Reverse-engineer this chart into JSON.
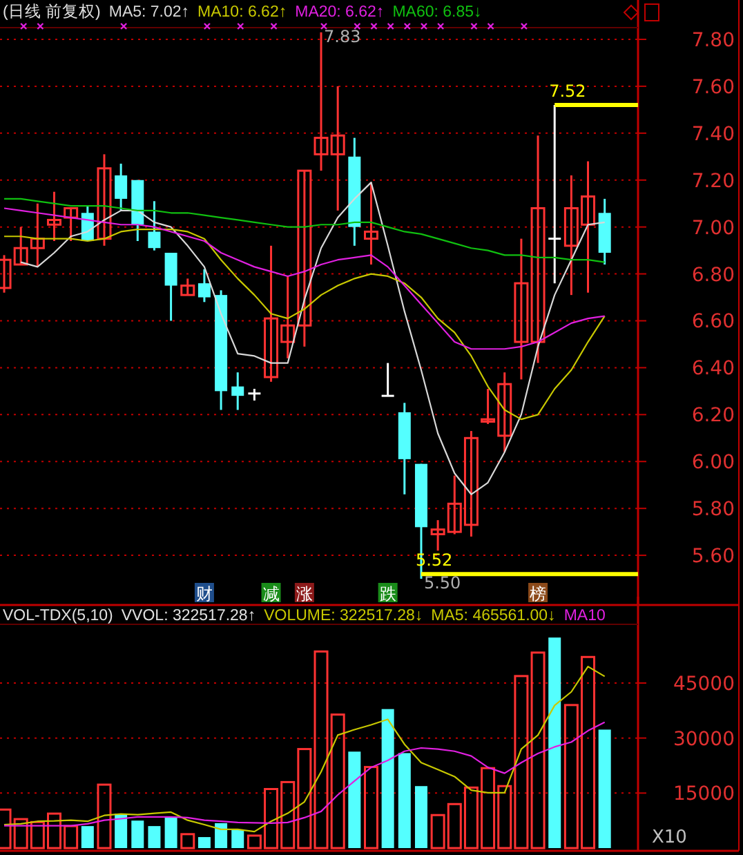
{
  "chart_data": [
    {
      "type": "candlestick",
      "title": "(日线 前复权)",
      "categories": [
        null,
        null,
        null,
        null,
        null,
        null,
        null,
        null,
        null,
        null,
        null,
        null,
        null,
        null,
        null,
        null,
        null,
        null,
        null,
        null,
        null,
        null,
        null,
        null,
        null,
        null,
        null,
        null,
        null,
        null,
        null,
        null,
        null,
        null,
        null,
        null,
        null
      ],
      "ohlc": [
        [
          6.74,
          6.88,
          6.72,
          6.86
        ],
        [
          6.84,
          7.0,
          6.84,
          6.91
        ],
        [
          6.91,
          7.1,
          6.83,
          6.95
        ],
        [
          7.01,
          7.15,
          6.94,
          7.03
        ],
        [
          7.04,
          7.08,
          6.94,
          7.08
        ],
        [
          7.06,
          7.09,
          6.94,
          6.94
        ],
        [
          6.95,
          7.31,
          6.92,
          7.25
        ],
        [
          7.22,
          7.27,
          7.07,
          7.12
        ],
        [
          7.2,
          7.2,
          6.94,
          7.01
        ],
        [
          6.98,
          7.11,
          6.9,
          6.91
        ],
        [
          6.89,
          6.89,
          6.6,
          6.75
        ],
        [
          6.71,
          6.78,
          6.71,
          6.75
        ],
        [
          6.76,
          6.82,
          6.68,
          6.7
        ],
        [
          6.71,
          6.73,
          6.22,
          6.3
        ],
        [
          6.32,
          6.38,
          6.22,
          6.28
        ],
        [
          6.29,
          6.31,
          6.26,
          6.29
        ],
        [
          6.36,
          6.92,
          6.34,
          6.61
        ],
        [
          6.51,
          6.79,
          6.44,
          6.58
        ],
        [
          6.58,
          7.24,
          6.49,
          7.24
        ],
        [
          7.31,
          7.83,
          7.24,
          7.38
        ],
        [
          7.31,
          7.6,
          7.07,
          7.39
        ],
        [
          7.3,
          7.38,
          6.92,
          7.0
        ],
        [
          6.95,
          7.19,
          6.84,
          6.98
        ],
        [
          6.28,
          6.42,
          6.28,
          6.28
        ],
        [
          6.21,
          6.25,
          5.86,
          6.01
        ],
        [
          5.99,
          5.99,
          5.5,
          5.72
        ],
        [
          5.69,
          5.75,
          5.62,
          5.71
        ],
        [
          5.7,
          5.94,
          5.69,
          5.82
        ],
        [
          5.73,
          6.13,
          5.68,
          6.1
        ],
        [
          6.17,
          6.31,
          6.16,
          6.18
        ],
        [
          6.11,
          6.38,
          6.04,
          6.33
        ],
        [
          6.51,
          6.95,
          6.35,
          6.76
        ],
        [
          6.51,
          7.39,
          6.42,
          7.08
        ],
        [
          6.95,
          7.52,
          6.76,
          6.95
        ],
        [
          6.92,
          7.22,
          6.71,
          7.08
        ],
        [
          7.01,
          7.28,
          6.72,
          7.13
        ],
        [
          7.06,
          7.12,
          6.84,
          6.89
        ]
      ],
      "colors": [
        "#ff3232",
        "#ff3232",
        "#ff3232",
        "#ff3232",
        "#ff3232",
        "#54ffff",
        "#ff3232",
        "#54ffff",
        "#54ffff",
        "#54ffff",
        "#54ffff",
        "#ff3232",
        "#54ffff",
        "#54ffff",
        "#54ffff",
        "#ffffff",
        "#ff3232",
        "#ff3232",
        "#ff3232",
        "#ff3232",
        "#ff3232",
        "#54ffff",
        "#ff3232",
        "#ffffff",
        "#54ffff",
        "#54ffff",
        "#ff3232",
        "#ff3232",
        "#ff3232",
        "#ff3232",
        "#ff3232",
        "#ff3232",
        "#ff3232",
        "#ffffff",
        "#ff3232",
        "#ff3232",
        "#54ffff"
      ],
      "series": [
        {
          "type": "line",
          "name": "MA5: 7.02↑",
          "color": "#d8d8d8",
          "values": [
            null,
            6.85,
            6.83,
            6.89,
            6.96,
            6.98,
            7.03,
            7.07,
            7.07,
            7.02,
            7.0,
            6.92,
            6.83,
            6.63,
            6.46,
            6.45,
            6.42,
            6.42,
            6.69,
            6.91,
            7.04,
            7.12,
            7.19,
            6.92,
            6.64,
            6.39,
            6.12,
            5.95,
            5.86,
            5.91,
            6.04,
            6.2,
            6.49,
            6.71,
            6.86,
            7.01,
            7.02
          ]
        },
        {
          "type": "line",
          "name": "MA10: 6.62↑",
          "color": "#c8c800",
          "values": [
            6.96,
            6.96,
            6.95,
            6.95,
            6.95,
            6.94,
            6.95,
            6.98,
            6.99,
            6.99,
            6.99,
            6.98,
            6.95,
            6.86,
            6.78,
            6.71,
            6.63,
            6.61,
            6.65,
            6.71,
            6.75,
            6.78,
            6.8,
            6.79,
            6.76,
            6.7,
            6.61,
            6.55,
            6.45,
            6.32,
            6.22,
            6.18,
            6.2,
            6.31,
            6.39,
            6.51,
            6.62
          ]
        },
        {
          "type": "line",
          "name": "MA20: 6.62↑",
          "color": "#e020e0",
          "values": [
            7.08,
            7.07,
            7.06,
            7.05,
            7.04,
            7.03,
            7.02,
            7.01,
            7.01,
            7.0,
            6.98,
            6.96,
            6.94,
            6.89,
            6.86,
            6.83,
            6.81,
            6.79,
            6.81,
            6.84,
            6.86,
            6.87,
            6.88,
            6.83,
            6.75,
            6.67,
            6.59,
            6.51,
            6.48,
            6.48,
            6.48,
            6.49,
            6.51,
            6.55,
            6.59,
            6.61,
            6.62
          ]
        },
        {
          "type": "line",
          "name": "MA60: 6.85↓",
          "color": "#10c010",
          "values": [
            7.12,
            7.12,
            7.11,
            7.1,
            7.09,
            7.09,
            7.09,
            7.08,
            7.07,
            7.07,
            7.06,
            7.06,
            7.05,
            7.04,
            7.03,
            7.02,
            7.01,
            7.0,
            7.0,
            7.01,
            7.01,
            7.02,
            7.02,
            7.0,
            6.98,
            6.97,
            6.95,
            6.93,
            6.91,
            6.9,
            6.88,
            6.88,
            6.87,
            6.87,
            6.86,
            6.86,
            6.85
          ]
        }
      ],
      "ylim": [
        5.4,
        7.85
      ],
      "yticks": [
        {
          "value": 5.6,
          "label": "5.60"
        },
        {
          "value": 5.8,
          "label": "5.80"
        },
        {
          "value": 6.0,
          "label": "6.00"
        },
        {
          "value": 6.2,
          "label": "6.20"
        },
        {
          "value": 6.4,
          "label": "6.40"
        },
        {
          "value": 6.6,
          "label": "6.60"
        },
        {
          "value": 6.8,
          "label": "6.80"
        },
        {
          "value": 7.0,
          "label": "7.00"
        },
        {
          "value": 7.2,
          "label": "7.20"
        },
        {
          "value": 7.4,
          "label": "7.40"
        },
        {
          "value": 7.6,
          "label": "7.60"
        },
        {
          "value": 7.8,
          "label": "7.80"
        }
      ],
      "grid": "y",
      "legend": "top",
      "ref_lines": [
        {
          "axis": "y",
          "value": 7.52,
          "label": "7.52",
          "color": "#ffff00"
        },
        {
          "axis": "y",
          "value": 5.52,
          "label": "5.52",
          "color": "#ffff00"
        }
      ],
      "annotations": [
        "7.83",
        {
          "text": "5.50",
          "y": 5.5
        },
        "财",
        "减",
        "涨",
        "跌",
        "榜"
      ]
    },
    {
      "type": "bar",
      "title": "VOL-TDX(5,10)",
      "categories": [
        null,
        null,
        null,
        null,
        null,
        null,
        null,
        null,
        null,
        null,
        null,
        null,
        null,
        null,
        null,
        null,
        null,
        null,
        null,
        null,
        null,
        null,
        null,
        null,
        null,
        null,
        null,
        null,
        null,
        null,
        null,
        null,
        null,
        null,
        null,
        null,
        null
      ],
      "series": [
        {
          "type": "bar",
          "values": [
            10500,
            7900,
            7100,
            9400,
            6000,
            6000,
            17300,
            9400,
            7500,
            6000,
            8600,
            3800,
            3000,
            6800,
            4900,
            3400,
            16100,
            18000,
            27000,
            53600,
            36400,
            26300,
            22100,
            37900,
            25900,
            16900,
            9000,
            12000,
            16500,
            21800,
            16900,
            46900,
            53300,
            57400,
            39000,
            52100,
            32300
          ],
          "colors": [
            "#ff3232",
            "#ff3232",
            "#ff3232",
            "#ff3232",
            "#ff3232",
            "#54ffff",
            "#ff3232",
            "#54ffff",
            "#54ffff",
            "#54ffff",
            "#54ffff",
            "#ff3232",
            "#54ffff",
            "#54ffff",
            "#54ffff",
            "#ff3232",
            "#ff3232",
            "#ff3232",
            "#ff3232",
            "#ff3232",
            "#ff3232",
            "#54ffff",
            "#ff3232",
            "#54ffff",
            "#54ffff",
            "#54ffff",
            "#ff3232",
            "#ff3232",
            "#ff3232",
            "#ff3232",
            "#ff3232",
            "#ff3232",
            "#ff3232",
            "#54ffff",
            "#ff3232",
            "#ff3232",
            "#54ffff"
          ]
        },
        {
          "type": "line",
          "name": "MA5: 465561.00↓",
          "color": "#c8c800",
          "values": [
            6400,
            6600,
            7300,
            7400,
            7600,
            7300,
            8900,
            9300,
            9100,
            9500,
            9800,
            7600,
            6400,
            5100,
            5100,
            4500,
            7300,
            9500,
            12600,
            20800,
            30800,
            32300,
            33600,
            35100,
            28300,
            23300,
            21400,
            19500,
            15800,
            15100,
            15100,
            27000,
            30800,
            38900,
            42600,
            49500,
            46800
          ]
        },
        {
          "type": "line",
          "name": "MA10",
          "color": "#e020e0",
          "values": [
            6100,
            6100,
            6100,
            6100,
            6100,
            6600,
            7600,
            8000,
            8500,
            8500,
            8500,
            8300,
            7600,
            7300,
            7000,
            6900,
            6800,
            7000,
            8300,
            10000,
            14500,
            18300,
            22000,
            23900,
            26400,
            27300,
            27000,
            26400,
            25100,
            22000,
            20400,
            23300,
            25800,
            27600,
            28900,
            32000,
            34300
          ]
        }
      ],
      "ylim": [
        0,
        61000
      ],
      "yticks": [
        15000,
        30000,
        45000
      ],
      "grid": "y",
      "legend": "top",
      "annotations": [
        "VVOL: 322517.28↑",
        "VOLUME: 322517.28↓",
        "X10"
      ]
    }
  ]
}
